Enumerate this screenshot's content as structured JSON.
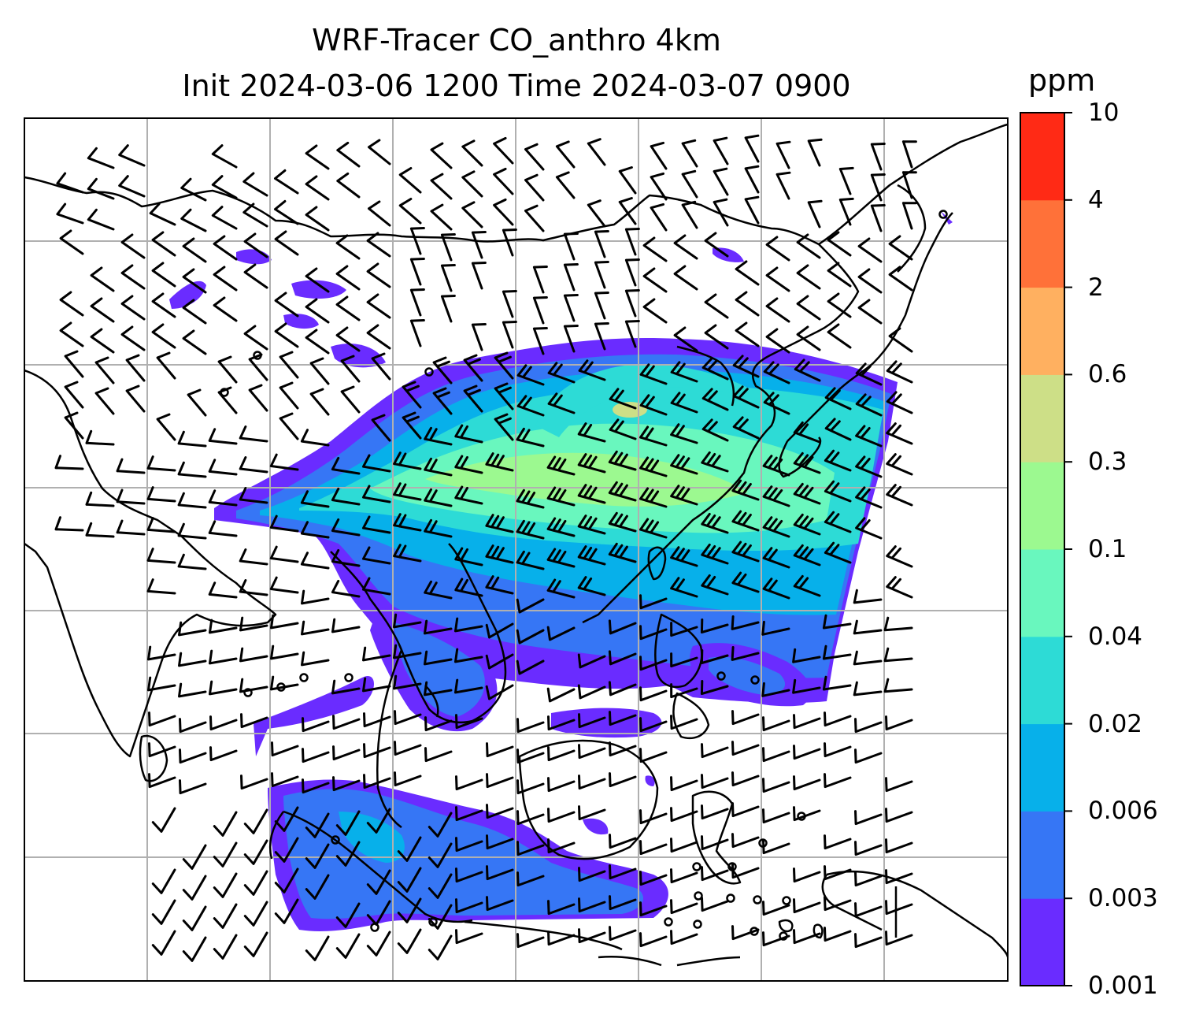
{
  "title_line1": "WRF-Tracer CO_anthro 4km",
  "title_line2": "Init 2024-03-06 1200 Time 2024-03-07 0900",
  "colorbar": {
    "unit": "ppm",
    "levels": [
      "0.001",
      "0.003",
      "0.006",
      "0.02",
      "0.04",
      "0.1",
      "0.3",
      "0.6",
      "2",
      "4",
      "10"
    ],
    "colors": [
      "#6a2cff",
      "#3676f5",
      "#07b0ea",
      "#2ddbd6",
      "#69f7be",
      "#9cf990",
      "#cddf87",
      "#ffb060",
      "#ff7139",
      "#ff2a15"
    ]
  },
  "map": {
    "background": "#ffffff",
    "gridline_color": "#b0b0b0",
    "coastline_color": "#000000",
    "barb_color": "#000000"
  }
}
